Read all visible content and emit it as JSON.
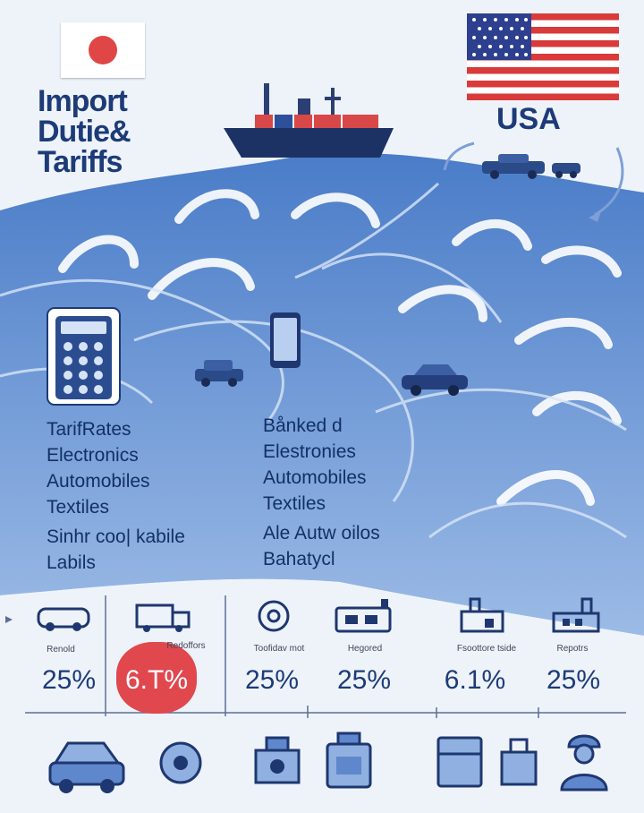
{
  "header": {
    "title_lines": [
      "Import",
      "Dutie&",
      "Tariffs"
    ],
    "country_label": "USA"
  },
  "icons": {
    "japan_flag": "japan-flag-icon",
    "usa_flag": "usa-flag-icon",
    "ship": "cargo-ship-icon",
    "calculator": "calculator-icon",
    "phone": "smartphone-icon",
    "car": "car-icon"
  },
  "left_list": [
    "TarifRates",
    "Electronics",
    "Automobiles",
    "Textiles",
    "Sinhr coo| kabile",
    "Labils"
  ],
  "right_list": [
    "Bånked d",
    "Elestronies",
    "Automobiles",
    "Textiles",
    "Ale Autw oilos",
    "Bahatycl"
  ],
  "categories": [
    {
      "label": "Renold",
      "value": "25%",
      "icon": "car-icon"
    },
    {
      "label": "Redoffors",
      "value": "6.T%",
      "icon": "truck-icon",
      "highlight": true
    },
    {
      "label": "Toofidav mot",
      "value": "25%",
      "icon": "gauge-icon"
    },
    {
      "label": "Hegored",
      "value": "25%",
      "icon": "machine-icon"
    },
    {
      "label": "Fsoottore tside",
      "value": "6.1%",
      "icon": "factory-icon"
    },
    {
      "label": "Repotrs",
      "value": "25%",
      "icon": "factory-icon"
    }
  ],
  "colors": {
    "navy": "#1d3b78",
    "wave_dark": "#3f6fc0",
    "wave_mid": "#6f9ad8",
    "wave_light": "#a9c4ea",
    "highlight_red": "#e0484e",
    "flag_red": "#d93a3a"
  }
}
